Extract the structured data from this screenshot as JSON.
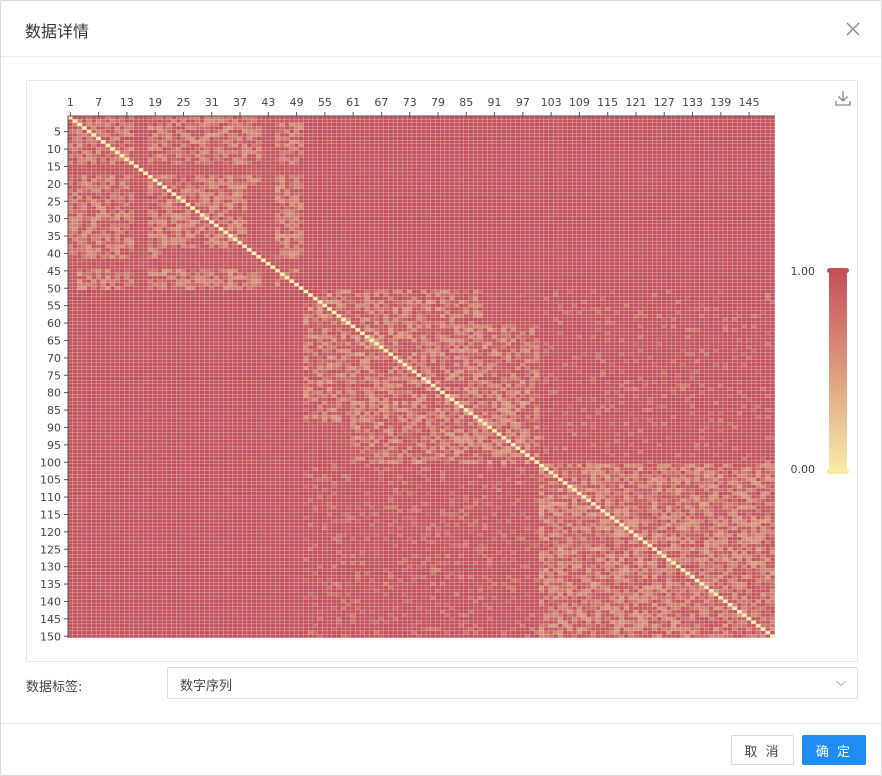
{
  "dialog": {
    "title": "数据详情",
    "field_label": "数据标签:",
    "select_value": "数字序列",
    "cancel_label": "取 消",
    "ok_label": "确 定"
  },
  "icons": {
    "close": "close-icon",
    "download": "download-icon",
    "dropdown": "chevron-down-icon"
  },
  "chart_data": {
    "type": "heatmap",
    "n": 150,
    "x_tick_labels": [
      "1",
      "7",
      "13",
      "19",
      "25",
      "31",
      "37",
      "43",
      "49",
      "55",
      "61",
      "67",
      "73",
      "79",
      "85",
      "91",
      "97",
      "103",
      "109",
      "115",
      "121",
      "127",
      "133",
      "139",
      "145"
    ],
    "y_tick_labels": [
      "5",
      "10",
      "15",
      "20",
      "25",
      "30",
      "35",
      "40",
      "45",
      "50",
      "55",
      "60",
      "65",
      "70",
      "75",
      "80",
      "85",
      "90",
      "95",
      "100",
      "105",
      "110",
      "115",
      "120",
      "125",
      "130",
      "135",
      "140",
      "145",
      "150"
    ],
    "value_range": [
      0,
      1
    ],
    "visual_map": {
      "max_label": "1.00",
      "min_label": "0.00",
      "position": "right"
    },
    "colors": {
      "high": "#c6505a",
      "mid": "#dd9b7e",
      "low": "#f7eba6"
    },
    "clusters": [
      [
        1,
        50
      ],
      [
        51,
        100
      ],
      [
        101,
        150
      ]
    ],
    "notes": "Pairwise distance-like matrix: diagonal 0 (light), within-cluster low/mixed values, between-cluster high values (red)."
  }
}
